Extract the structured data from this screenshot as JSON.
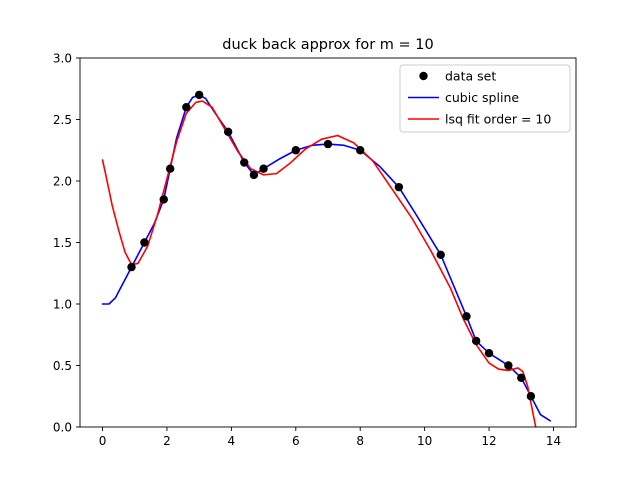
{
  "chart_data": {
    "type": "line",
    "title": "duck back approx for m = 10",
    "xlabel": "",
    "ylabel": "",
    "xlim": [
      -0.7,
      14.7
    ],
    "ylim": [
      0.0,
      3.0
    ],
    "grid": false,
    "legend_position": "top-right",
    "x_ticks": [
      0,
      2,
      4,
      6,
      8,
      10,
      12,
      14
    ],
    "x_tick_labels": [
      "0",
      "2",
      "4",
      "6",
      "8",
      "10",
      "12",
      "14"
    ],
    "y_ticks": [
      0.0,
      0.5,
      1.0,
      1.5,
      2.0,
      2.5,
      3.0
    ],
    "y_tick_labels": [
      "0.0",
      "0.5",
      "1.0",
      "1.5",
      "2.0",
      "2.5",
      "3.0"
    ],
    "series": [
      {
        "name": "data set",
        "kind": "scatter",
        "color": "#000000",
        "x": [
          0.9,
          1.3,
          1.9,
          2.1,
          2.6,
          3.0,
          3.9,
          4.4,
          4.7,
          5.0,
          6.0,
          7.0,
          8.0,
          9.2,
          10.5,
          11.3,
          11.6,
          12.0,
          12.6,
          13.0,
          13.3
        ],
        "y": [
          1.3,
          1.5,
          1.85,
          2.1,
          2.6,
          2.7,
          2.4,
          2.15,
          2.05,
          2.1,
          2.25,
          2.3,
          2.25,
          1.95,
          1.4,
          0.9,
          0.7,
          0.6,
          0.5,
          0.4,
          0.25
        ]
      },
      {
        "name": "cubic spline",
        "kind": "line",
        "color": "#0000ff",
        "x": [
          0.0,
          0.2,
          0.4,
          0.6,
          0.9,
          1.1,
          1.3,
          1.6,
          1.9,
          2.1,
          2.3,
          2.6,
          2.8,
          3.0,
          3.2,
          3.5,
          3.9,
          4.2,
          4.4,
          4.7,
          5.0,
          5.5,
          6.0,
          6.5,
          7.0,
          7.5,
          8.0,
          8.6,
          9.2,
          9.8,
          10.5,
          10.9,
          11.3,
          11.6,
          12.0,
          12.3,
          12.6,
          13.0,
          13.3,
          13.6,
          13.9
        ],
        "y": [
          1.0,
          1.0,
          1.05,
          1.15,
          1.3,
          1.4,
          1.5,
          1.65,
          1.85,
          2.1,
          2.35,
          2.6,
          2.68,
          2.7,
          2.67,
          2.55,
          2.4,
          2.25,
          2.15,
          2.05,
          2.1,
          2.18,
          2.25,
          2.29,
          2.3,
          2.29,
          2.25,
          2.12,
          1.95,
          1.7,
          1.4,
          1.15,
          0.9,
          0.7,
          0.6,
          0.55,
          0.5,
          0.4,
          0.25,
          0.1,
          0.05
        ]
      },
      {
        "name": "lsq fit order = 10",
        "kind": "line",
        "color": "#ff0000",
        "x": [
          0.0,
          0.1,
          0.3,
          0.5,
          0.7,
          0.9,
          1.1,
          1.4,
          1.7,
          2.0,
          2.3,
          2.6,
          2.9,
          3.1,
          3.4,
          3.8,
          4.2,
          4.6,
          5.0,
          5.4,
          5.8,
          6.3,
          6.8,
          7.3,
          7.8,
          8.4,
          9.0,
          9.6,
          10.2,
          10.8,
          11.2,
          11.6,
          12.0,
          12.3,
          12.6,
          12.9,
          13.05,
          13.2,
          13.35,
          13.45
        ],
        "y": [
          2.17,
          2.05,
          1.8,
          1.6,
          1.42,
          1.32,
          1.33,
          1.47,
          1.72,
          2.02,
          2.32,
          2.55,
          2.64,
          2.65,
          2.6,
          2.42,
          2.24,
          2.1,
          2.05,
          2.06,
          2.14,
          2.26,
          2.34,
          2.37,
          2.31,
          2.16,
          1.93,
          1.7,
          1.43,
          1.13,
          0.88,
          0.67,
          0.52,
          0.47,
          0.46,
          0.48,
          0.45,
          0.33,
          0.13,
          0.0
        ]
      }
    ]
  }
}
